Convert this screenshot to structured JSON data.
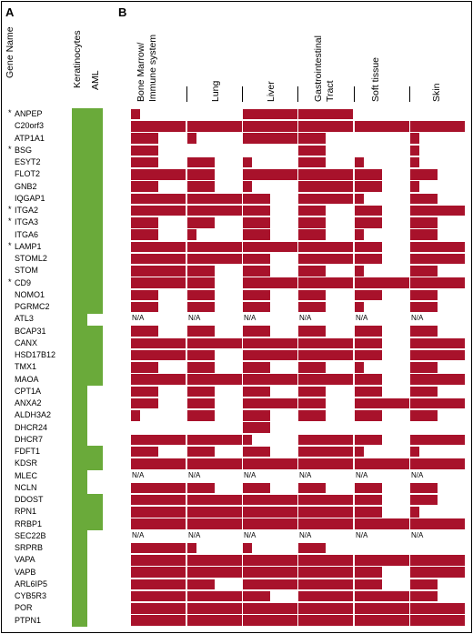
{
  "panels": {
    "a": "A",
    "b": "B"
  },
  "headers": {
    "gene_name": "Gene Name",
    "cells": [
      "Keratinocytes",
      "AML"
    ],
    "tissues": [
      [
        "Bone Marrow/",
        "Immune system"
      ],
      [
        "Lung"
      ],
      [
        "Liver"
      ],
      [
        "Gastrointestinal",
        "Tract"
      ],
      [
        "Soft tissue"
      ],
      [
        "Skin"
      ]
    ]
  },
  "colors": {
    "green": "#6aaa3a",
    "red": "#a8122b",
    "text": "#000000"
  },
  "na_label": "N/A",
  "chart_data": {
    "type": "heatmap",
    "title": "",
    "genes": [
      "ANPEP",
      "C20orf3",
      "ATP1A1",
      "BSG",
      "ESYT2",
      "FLOT2",
      "GNB2",
      "IQGAP1",
      "ITGA2",
      "ITGA3",
      "ITGA6",
      "LAMP1",
      "STOML2",
      "STOM",
      "CD9",
      "NOMO1",
      "PGRMC2",
      "ATL3",
      "BCAP31",
      "CANX",
      "HSD17B12",
      "TMX1",
      "MAOA",
      "CPT1A",
      "ANXA2",
      "ALDH3A2",
      "DHCR24",
      "DHCR7",
      "FDFT1",
      "KDSR",
      "MLEC",
      "NCLN",
      "DDOST",
      "RPN1",
      "RRBP1",
      "SEC22B",
      "SRPRB",
      "VAPA",
      "VAPB",
      "ARL6IP5",
      "CYB5R3",
      "POR",
      "PTPN1"
    ],
    "starred": [
      true,
      false,
      false,
      true,
      false,
      false,
      false,
      false,
      true,
      true,
      false,
      true,
      false,
      false,
      true,
      false,
      false,
      false,
      false,
      false,
      false,
      false,
      false,
      false,
      false,
      false,
      false,
      false,
      false,
      false,
      false,
      false,
      false,
      false,
      false,
      false,
      false,
      false,
      false,
      false,
      false,
      false,
      false
    ],
    "keratinocytes": [
      1,
      1,
      1,
      1,
      1,
      1,
      1,
      1,
      1,
      1,
      1,
      1,
      1,
      1,
      1,
      1,
      1,
      1,
      1,
      1,
      1,
      1,
      1,
      1,
      1,
      1,
      1,
      1,
      1,
      1,
      1,
      1,
      1,
      1,
      1,
      1,
      1,
      1,
      1,
      1,
      1,
      1,
      1
    ],
    "aml": [
      1,
      1,
      1,
      1,
      1,
      1,
      1,
      1,
      1,
      1,
      1,
      1,
      1,
      1,
      1,
      1,
      1,
      0,
      1,
      1,
      1,
      1,
      1,
      0,
      0,
      0,
      0,
      0,
      1,
      1,
      0,
      0,
      1,
      1,
      1,
      0,
      0,
      0,
      0,
      0,
      0,
      0,
      0
    ],
    "tissues": [
      "Bone Marrow/Immune system",
      "Lung",
      "Liver",
      "Gastrointestinal Tract",
      "Soft tissue",
      "Skin"
    ],
    "expression_levels": "0-3 per tissue (fraction of column width filled); null = N/A",
    "values": [
      [
        1,
        0,
        3,
        3,
        0,
        0
      ],
      [
        3,
        3,
        3,
        3,
        3,
        3
      ],
      [
        2,
        1,
        3,
        2,
        0,
        1
      ],
      [
        2,
        0,
        0,
        2,
        0,
        1
      ],
      [
        2,
        2,
        1,
        2,
        1,
        1
      ],
      [
        3,
        2,
        3,
        3,
        2,
        2
      ],
      [
        2,
        2,
        1,
        3,
        2,
        1
      ],
      [
        3,
        3,
        2,
        3,
        1,
        2
      ],
      [
        3,
        3,
        2,
        2,
        2,
        3
      ],
      [
        2,
        2,
        2,
        2,
        2,
        2
      ],
      [
        2,
        1,
        2,
        2,
        1,
        2
      ],
      [
        3,
        3,
        3,
        3,
        2,
        3
      ],
      [
        3,
        3,
        2,
        3,
        2,
        3
      ],
      [
        3,
        2,
        2,
        2,
        1,
        2
      ],
      [
        3,
        2,
        3,
        3,
        3,
        3
      ],
      [
        2,
        2,
        2,
        2,
        2,
        2
      ],
      [
        2,
        2,
        2,
        2,
        1,
        2
      ],
      [
        null,
        null,
        null,
        null,
        null,
        null
      ],
      [
        2,
        2,
        2,
        2,
        2,
        2
      ],
      [
        3,
        3,
        3,
        3,
        2,
        3
      ],
      [
        3,
        2,
        3,
        3,
        2,
        3
      ],
      [
        2,
        2,
        2,
        2,
        1,
        2
      ],
      [
        3,
        3,
        3,
        3,
        2,
        3
      ],
      [
        2,
        2,
        2,
        2,
        2,
        2
      ],
      [
        2,
        2,
        3,
        2,
        3,
        3
      ],
      [
        1,
        2,
        2,
        2,
        2,
        2
      ],
      [
        0,
        0,
        2,
        0,
        0,
        0
      ],
      [
        3,
        3,
        1,
        3,
        2,
        3
      ],
      [
        2,
        2,
        2,
        3,
        1,
        1
      ],
      [
        3,
        3,
        3,
        3,
        3,
        3
      ],
      [
        null,
        null,
        null,
        null,
        null,
        null
      ],
      [
        3,
        2,
        2,
        2,
        2,
        2
      ],
      [
        3,
        3,
        3,
        3,
        2,
        2
      ],
      [
        3,
        3,
        3,
        3,
        2,
        1
      ],
      [
        3,
        3,
        3,
        3,
        3,
        3
      ],
      [
        null,
        null,
        null,
        null,
        null,
        null
      ],
      [
        3,
        1,
        1,
        2,
        0,
        0
      ],
      [
        3,
        3,
        3,
        3,
        3,
        3
      ],
      [
        3,
        3,
        3,
        3,
        2,
        3
      ],
      [
        3,
        2,
        3,
        3,
        2,
        2
      ],
      [
        3,
        3,
        2,
        3,
        3,
        2
      ],
      [
        3,
        3,
        3,
        3,
        3,
        3
      ],
      [
        3,
        3,
        3,
        3,
        3,
        3
      ]
    ]
  }
}
